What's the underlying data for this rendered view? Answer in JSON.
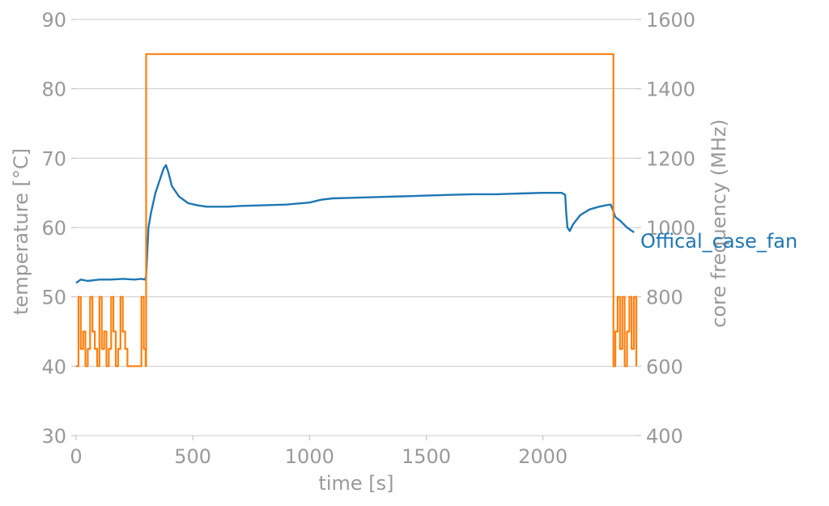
{
  "chart_data": {
    "type": "line",
    "xlabel": "time [s]",
    "ylabel": "temperature [°C]",
    "y2label": "core frequency (MHz)",
    "xlim": [
      0,
      2400
    ],
    "ylim": [
      30,
      90
    ],
    "y2lim": [
      400,
      1600
    ],
    "x_ticks": [
      0,
      500,
      1000,
      1500,
      2000
    ],
    "y_ticks": [
      30,
      40,
      50,
      60,
      70,
      80,
      90
    ],
    "y2_ticks": [
      400,
      600,
      800,
      1000,
      1200,
      1400,
      1600
    ],
    "grid": "horizontal",
    "series": [
      {
        "name": "Offical_case_fan",
        "axis": "left",
        "color": "#1f77b4",
        "x": [
          0,
          20,
          50,
          100,
          150,
          200,
          250,
          280,
          295,
          300,
          310,
          320,
          340,
          360,
          375,
          385,
          395,
          410,
          440,
          480,
          520,
          560,
          600,
          650,
          700,
          800,
          900,
          1000,
          1050,
          1100,
          1200,
          1300,
          1400,
          1500,
          1600,
          1700,
          1800,
          1900,
          2000,
          2080,
          2095,
          2100,
          2105,
          2115,
          2130,
          2160,
          2200,
          2240,
          2270,
          2290,
          2300,
          2310,
          2330,
          2360,
          2390
        ],
        "y": [
          52,
          52.5,
          52.3,
          52.5,
          52.5,
          52.6,
          52.5,
          52.6,
          52.5,
          53,
          60,
          62,
          65,
          67,
          68.5,
          69,
          68,
          66,
          64.5,
          63.5,
          63.2,
          63,
          63,
          63,
          63.1,
          63.2,
          63.3,
          63.6,
          64,
          64.2,
          64.3,
          64.4,
          64.5,
          64.6,
          64.7,
          64.8,
          64.8,
          64.9,
          65,
          65,
          64.7,
          62,
          60,
          59.5,
          60.5,
          61.8,
          62.6,
          63,
          63.2,
          63.3,
          62.5,
          61.5,
          61,
          60,
          59.3
        ]
      },
      {
        "name": "",
        "axis": "right",
        "color": "#ff7f0e",
        "x": [
          0,
          10,
          20,
          30,
          40,
          50,
          60,
          70,
          80,
          90,
          100,
          110,
          120,
          130,
          140,
          150,
          160,
          170,
          180,
          190,
          200,
          210,
          220,
          230,
          240,
          250,
          260,
          270,
          280,
          290,
          298,
          300,
          2300,
          2302,
          2310,
          2320,
          2330,
          2340,
          2350,
          2360,
          2370,
          2380,
          2390,
          2400
        ],
        "y": [
          600,
          800,
          650,
          700,
          600,
          650,
          800,
          700,
          650,
          600,
          800,
          650,
          700,
          600,
          650,
          800,
          700,
          600,
          650,
          800,
          700,
          650,
          600,
          600,
          600,
          600,
          600,
          600,
          800,
          650,
          600,
          1500,
          1500,
          600,
          700,
          800,
          650,
          800,
          600,
          700,
          800,
          650,
          800,
          600
        ]
      }
    ]
  }
}
